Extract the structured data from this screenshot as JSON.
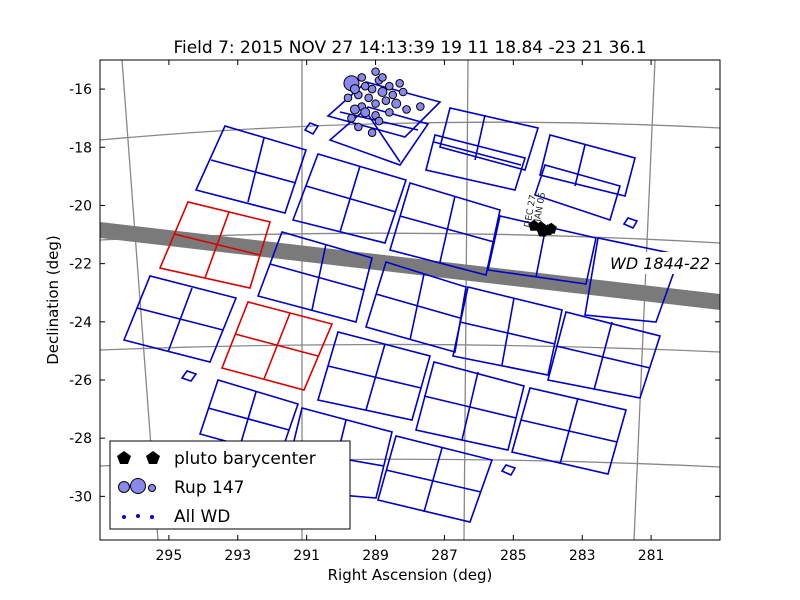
{
  "chart_data": {
    "type": "scatter",
    "title": "Field 7: 2015 NOV 27 14:13:39    19 11 18.84 -23 21 36.1",
    "xlabel": "Right Ascension (deg)",
    "ylabel": "Declination (deg)",
    "xlim": [
      297,
      279
    ],
    "ylim": [
      -31.5,
      -15
    ],
    "x_ticks": [
      "295",
      "293",
      "291",
      "289",
      "287",
      "285",
      "283",
      "281"
    ],
    "y_ticks": [
      "-16",
      "-18",
      "-20",
      "-22",
      "-24",
      "-26",
      "-28",
      "-30"
    ],
    "grid": false,
    "legend_position": "lower-left",
    "legend": [
      {
        "label": "pluto barycenter",
        "marker": "pentagon",
        "color": "#000000"
      },
      {
        "label": "Rup 147",
        "marker": "circle",
        "color": "#8888ee"
      },
      {
        "label": "All WD",
        "marker": "dot",
        "color": "#0000dd"
      }
    ],
    "annotations": [
      {
        "text": "WD 1844-22",
        "x": 281.3,
        "y": -21.8
      },
      {
        "text": "DEC 27",
        "x": 284.6,
        "y": -19.8
      },
      {
        "text": "JAN 05",
        "x": 284.2,
        "y": -19.6
      }
    ],
    "series": [
      {
        "name": "pluto barycenter",
        "points": [
          [
            284.4,
            -20.7
          ],
          [
            284.2,
            -20.75
          ],
          [
            284.0,
            -20.85
          ],
          [
            283.9,
            -20.8
          ],
          [
            284.15,
            -20.9
          ]
        ]
      },
      {
        "name": "All WD",
        "points": [
          [
            281.3,
            -21.85
          ]
        ]
      },
      {
        "name": "Rup 147",
        "points": [
          [
            289.7,
            -15.8
          ],
          [
            289.0,
            -15.4
          ],
          [
            288.9,
            -15.7
          ],
          [
            289.3,
            -15.9
          ],
          [
            289.1,
            -16.0
          ],
          [
            288.8,
            -16.1
          ],
          [
            289.5,
            -16.2
          ],
          [
            289.2,
            -16.3
          ],
          [
            288.7,
            -16.4
          ],
          [
            289.0,
            -16.5
          ],
          [
            289.6,
            -16.0
          ],
          [
            289.4,
            -16.6
          ],
          [
            288.6,
            -15.9
          ],
          [
            289.8,
            -16.3
          ],
          [
            288.5,
            -16.2
          ],
          [
            289.3,
            -16.8
          ],
          [
            289.0,
            -16.9
          ],
          [
            289.7,
            -17.0
          ],
          [
            288.9,
            -17.1
          ],
          [
            289.5,
            -17.3
          ],
          [
            288.4,
            -16.5
          ],
          [
            288.2,
            -16.1
          ],
          [
            288.1,
            -16.7
          ],
          [
            289.1,
            -17.5
          ],
          [
            288.6,
            -16.8
          ],
          [
            289.6,
            -16.7
          ],
          [
            288.3,
            -15.8
          ],
          [
            289.4,
            -15.6
          ],
          [
            288.8,
            -15.6
          ],
          [
            287.7,
            -16.6
          ]
        ]
      }
    ]
  }
}
